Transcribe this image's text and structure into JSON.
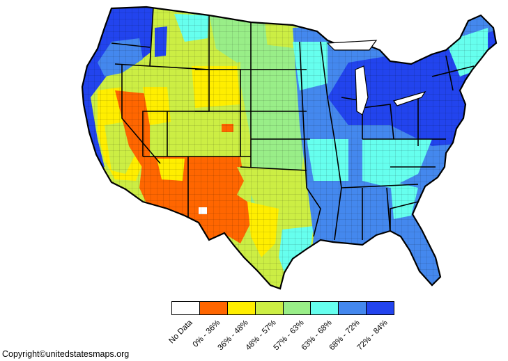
{
  "map": {
    "colors": {
      "no_data": "#ffffff",
      "c0_36": "#ff6600",
      "c36_48": "#ffee00",
      "c48_57": "#ccee44",
      "c57_63": "#99ee88",
      "c63_68": "#66ffee",
      "c68_72": "#4488ee",
      "c72_84": "#2244ee",
      "border": "#000000"
    }
  },
  "legend": {
    "items": [
      {
        "label": "No Data",
        "color": "#ffffff"
      },
      {
        "label": "0% - 36%",
        "color": "#ff6600"
      },
      {
        "label": "36% - 48%",
        "color": "#ffee00"
      },
      {
        "label": "48% - 57%",
        "color": "#ccee44"
      },
      {
        "label": "57% - 63%",
        "color": "#99ee88"
      },
      {
        "label": "63% - 68%",
        "color": "#66ffee"
      },
      {
        "label": "68% - 72%",
        "color": "#4488ee"
      },
      {
        "label": "72% - 84%",
        "color": "#2244ee"
      }
    ]
  },
  "footer": {
    "copyright": "Copyright©unitedstatesmaps.org"
  }
}
